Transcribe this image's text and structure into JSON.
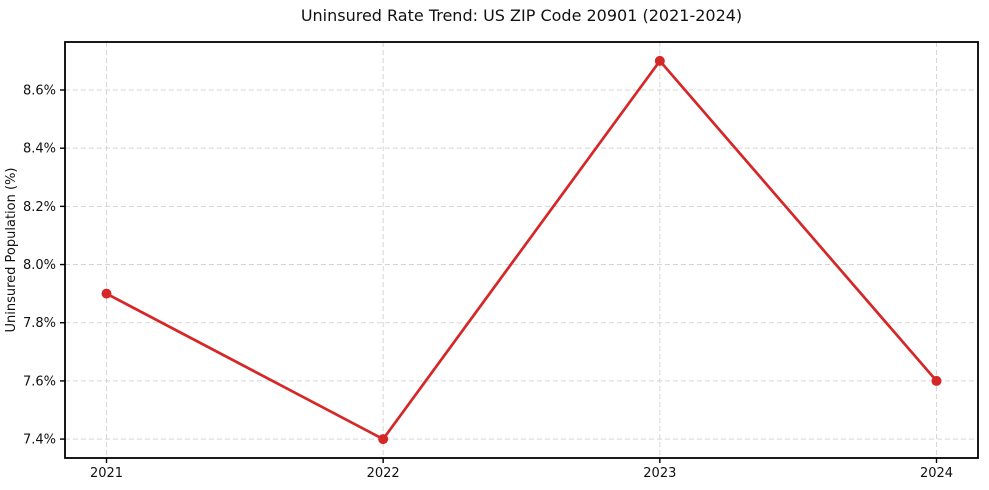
{
  "chart_data": {
    "type": "line",
    "title": "Uninsured Rate Trend: US ZIP Code 20901 (2021-2024)",
    "xlabel": "",
    "ylabel": "Uninsured Population (%)",
    "categories": [
      2021,
      2022,
      2023,
      2024
    ],
    "series": [
      {
        "values": [
          7.9,
          7.4,
          8.7,
          7.6
        ],
        "color": "#d62728",
        "marker": "circle"
      }
    ],
    "xlim": [
      2020.85,
      2024.15
    ],
    "ylim": [
      7.335,
      8.765
    ],
    "xticks": {
      "values": [
        2021,
        2022,
        2023,
        2024
      ],
      "labels": [
        "2021",
        "2022",
        "2023",
        "2024"
      ]
    },
    "yticks": {
      "values": [
        7.4,
        7.6,
        7.8,
        8.0,
        8.2,
        8.4,
        8.6
      ],
      "labels": [
        "7.4%",
        "7.6%",
        "7.8%",
        "8.0%",
        "8.2%",
        "8.4%",
        "8.6%"
      ]
    },
    "grid": true,
    "grid_style": "dashed",
    "grid_color": "#d5d5d5",
    "background_color": "#ffffff",
    "spine_color": "#000000",
    "legend": false
  }
}
